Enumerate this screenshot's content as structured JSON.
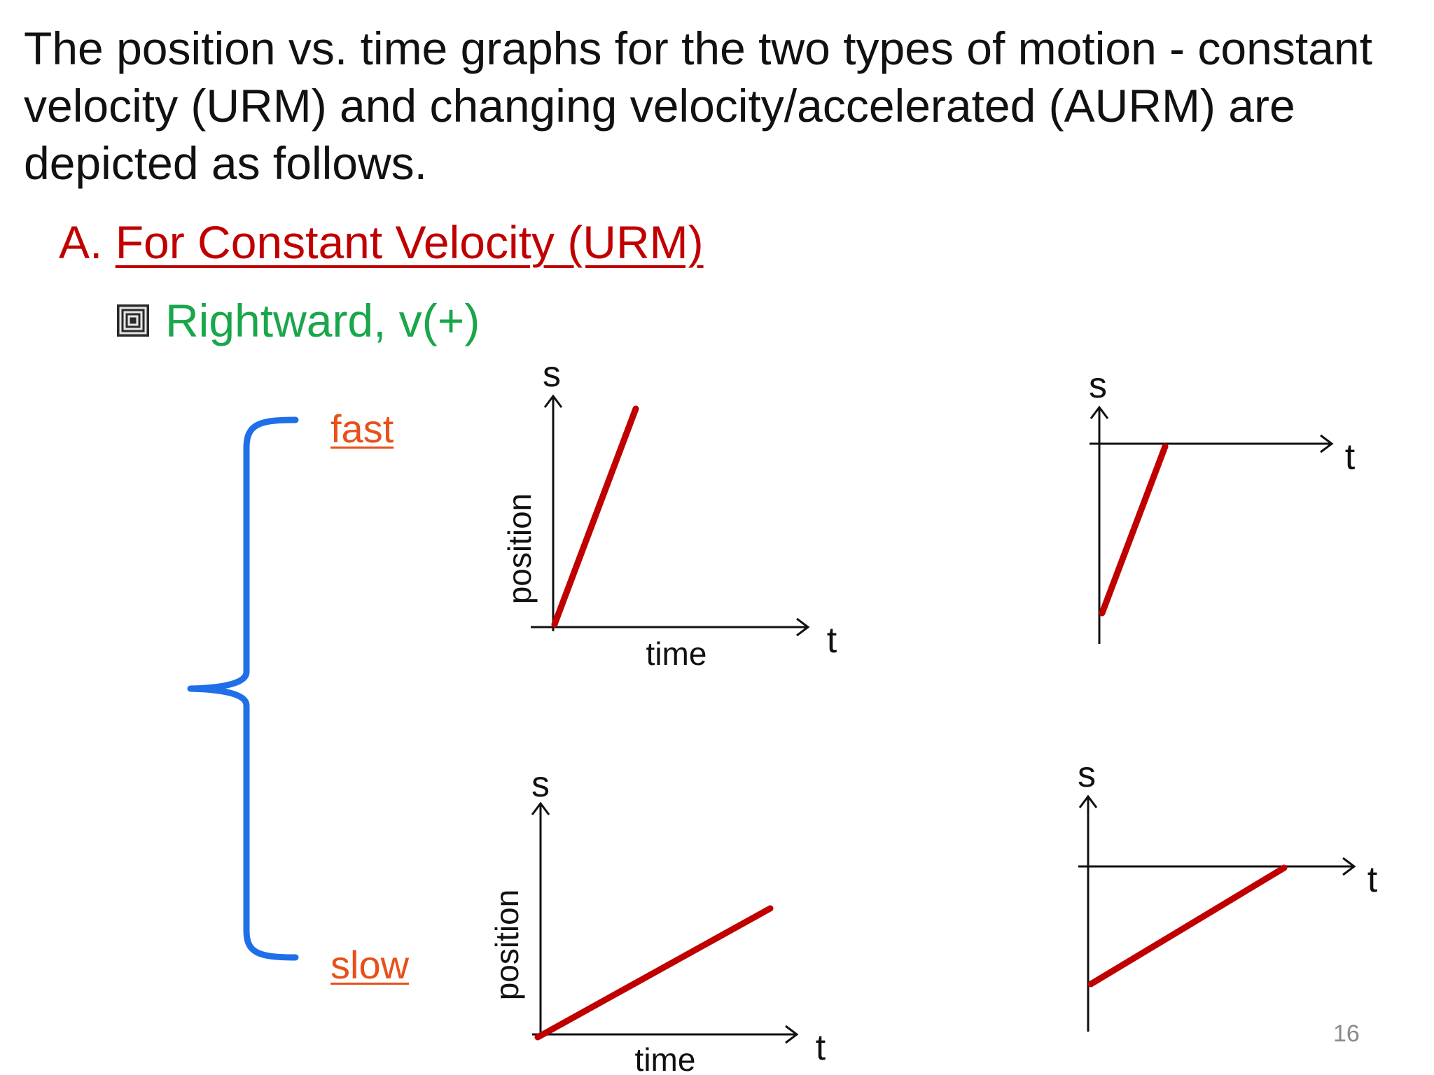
{
  "intro_text": "The position vs. time graphs for the two types of motion - constant velocity (URM) and changing velocity/accelerated (AURM) are depicted as follows.",
  "section": {
    "letter": "A.",
    "title": "For Constant Velocity (URM)"
  },
  "bullet": {
    "icon": "square-spiral-bullet-icon",
    "text": "Rightward, v(+)"
  },
  "speed_labels": {
    "fast": "fast",
    "slow": "slow"
  },
  "graphs": {
    "fast_origin": {
      "y_axis": "s",
      "x_axis": "t",
      "y_label": "position",
      "x_label": "time"
    },
    "fast_negative": {
      "y_axis": "s",
      "x_axis": "t"
    },
    "slow_origin": {
      "y_axis": "s",
      "x_axis": "t",
      "y_label": "position",
      "x_label": "time"
    },
    "slow_negative": {
      "y_axis": "s",
      "x_axis": "t"
    }
  },
  "colors": {
    "heading_red": "#c00000",
    "bullet_green": "#1aa64b",
    "speed_orange": "#e8501a",
    "brace_blue": "#1f6fe8",
    "line_red": "#c00000"
  },
  "slide_number": "16"
}
